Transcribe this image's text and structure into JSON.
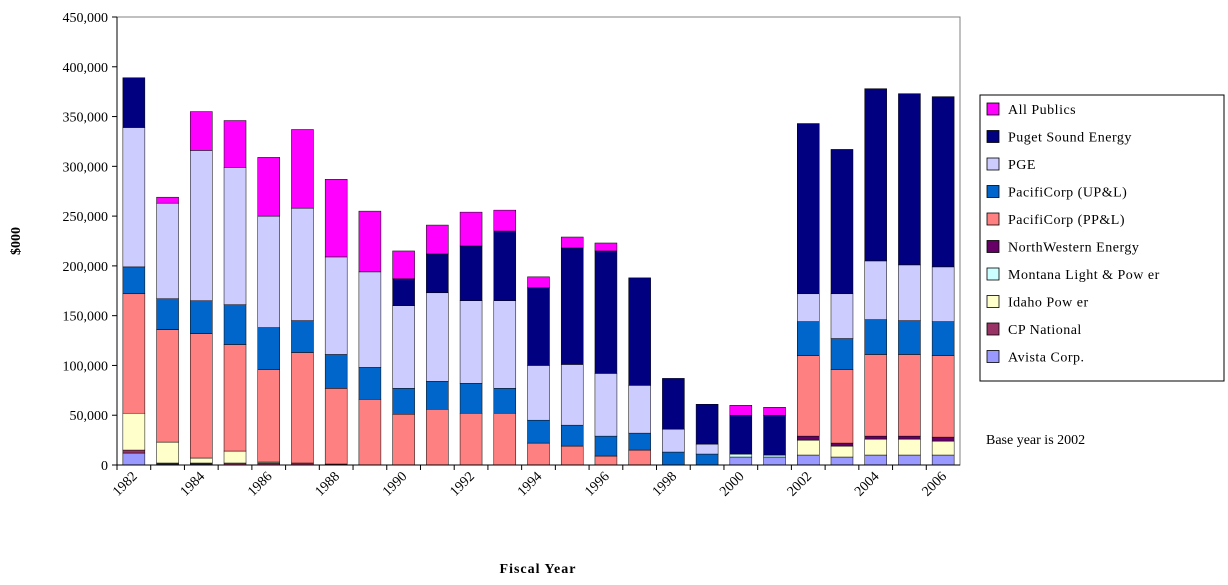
{
  "chart_data": {
    "type": "stacked_bar",
    "x_label": "Fiscal Year",
    "y_label": "$000",
    "annotation": "Base year is 2002",
    "categories": [
      "1982",
      null,
      "1984",
      null,
      "1986",
      null,
      "1988",
      null,
      "1990",
      null,
      "1992",
      null,
      "1994",
      null,
      "1996",
      null,
      "1998",
      null,
      "2000",
      null,
      "2002",
      null,
      "2004",
      null,
      "2006"
    ],
    "ylim": [
      0,
      450000
    ],
    "yticks": [
      0,
      {
        "value": 50000,
        "label": "50,000"
      },
      {
        "value": 100000,
        "label": "100,000"
      },
      {
        "value": 150000,
        "label": "150,000"
      },
      {
        "value": 200000,
        "label": "200,000"
      },
      {
        "value": 250000,
        "label": "250,000"
      },
      {
        "value": 300000,
        "label": "300,000"
      },
      {
        "value": 350000,
        "label": "350,000"
      },
      {
        "value": 400000,
        "label": "400,000"
      },
      {
        "value": 450000,
        "label": "450,000"
      }
    ],
    "series": [
      {
        "name": "Avista Corp.",
        "color": "#9999ff",
        "values": [
          12000,
          1000,
          1000,
          0,
          0,
          0,
          0,
          0,
          0,
          0,
          0,
          0,
          0,
          0,
          0,
          0,
          0,
          0,
          8000,
          8000,
          10000,
          8000,
          10000,
          10000,
          10000
        ]
      },
      {
        "name": "CP National",
        "color": "#993366",
        "values": [
          3000,
          1000,
          1000,
          2000,
          2000,
          2000,
          1000,
          0,
          0,
          0,
          0,
          0,
          0,
          0,
          0,
          0,
          0,
          0,
          0,
          0,
          0,
          0,
          0,
          0,
          0
        ]
      },
      {
        "name": "Idaho Pow er",
        "color": "#ffffcc",
        "values": [
          37000,
          21000,
          5000,
          12000,
          1000,
          0,
          0,
          0,
          0,
          0,
          0,
          0,
          0,
          0,
          0,
          0,
          0,
          0,
          0,
          0,
          15000,
          11000,
          16000,
          16000,
          14000
        ]
      },
      {
        "name": "Montana Light & Pow er",
        "color": "#ccffff",
        "values": [
          0,
          0,
          0,
          0,
          0,
          0,
          0,
          0,
          0,
          0,
          0,
          0,
          0,
          0,
          0,
          0,
          0,
          0,
          3000,
          2000,
          0,
          0,
          0,
          0,
          0
        ]
      },
      {
        "name": "NorthWestern Energy",
        "color": "#660066",
        "values": [
          0,
          0,
          0,
          0,
          0,
          0,
          0,
          0,
          0,
          0,
          0,
          0,
          0,
          0,
          0,
          0,
          0,
          0,
          0,
          0,
          4000,
          3000,
          3000,
          3000,
          4000
        ]
      },
      {
        "name": "PacifiCorp (PP&L)",
        "color": "#ff8080",
        "values": [
          120000,
          113000,
          125000,
          107000,
          93000,
          111000,
          76000,
          66000,
          51000,
          56000,
          52000,
          52000,
          22000,
          19000,
          9000,
          15000,
          0,
          0,
          0,
          0,
          81000,
          74000,
          82000,
          82000,
          82000
        ]
      },
      {
        "name": "PacifiCorp (UP&L)",
        "color": "#0066cc",
        "values": [
          27000,
          31000,
          33000,
          40000,
          42000,
          32000,
          34000,
          32000,
          26000,
          28000,
          30000,
          25000,
          23000,
          21000,
          20000,
          17000,
          13000,
          11000,
          0,
          0,
          34000,
          31000,
          35000,
          34000,
          34000
        ]
      },
      {
        "name": "PGE",
        "color": "#ccccff",
        "values": [
          140000,
          96000,
          151000,
          138000,
          112000,
          113000,
          98000,
          96000,
          83000,
          89000,
          83000,
          88000,
          55000,
          61000,
          63000,
          48000,
          23000,
          10000,
          0,
          0,
          28000,
          45000,
          59000,
          56000,
          55000
        ]
      },
      {
        "name": "Puget Sound Energy",
        "color": "#000080",
        "values": [
          50000,
          0,
          0,
          0,
          0,
          0,
          0,
          0,
          27000,
          39000,
          55000,
          70000,
          78000,
          117000,
          123000,
          108000,
          51000,
          40000,
          39000,
          40000,
          171000,
          145000,
          173000,
          172000,
          171000
        ]
      },
      {
        "name": "All Publics",
        "color": "#ff00ff",
        "values": [
          0,
          6000,
          39000,
          47000,
          59000,
          79000,
          78000,
          61000,
          28000,
          29000,
          34000,
          21000,
          11000,
          11000,
          8000,
          0,
          0,
          0,
          10000,
          8000,
          0,
          0,
          0,
          0,
          0
        ]
      }
    ]
  }
}
